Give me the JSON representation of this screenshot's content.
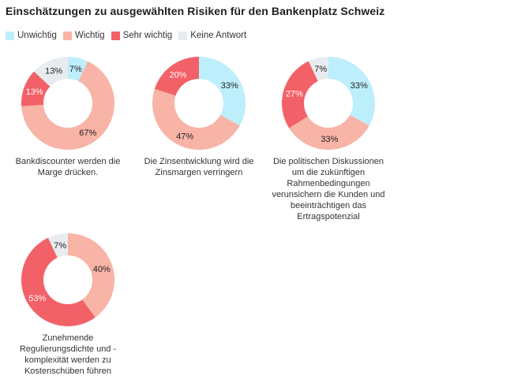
{
  "title": "Einschätzungen zu ausgewählten Risiken für den Bankenplatz Schweiz",
  "colors": {
    "Unwichtig": "#bdeefb",
    "Wichtig": "#f8b4a6",
    "Sehr wichtig": "#f36168",
    "Keine Antwort": "#e8ecef"
  },
  "chart_data": {
    "type": "pie",
    "title": "Einschätzungen zu ausgewählten Risiken für den Bankenplatz Schweiz",
    "legend": {
      "position": "top-left",
      "entries": [
        "Unwichtig",
        "Wichtig",
        "Sehr wichtig",
        "Keine Antwort"
      ]
    },
    "charts": [
      {
        "caption": "Bankdiscounter werden die Marge drücken.",
        "slices": [
          {
            "category": "Unwichtig",
            "value": 7,
            "label": "7%"
          },
          {
            "category": "Wichtig",
            "value": 67,
            "label": "67%"
          },
          {
            "category": "Sehr wichtig",
            "value": 13,
            "label": "13%"
          },
          {
            "category": "Keine Antwort",
            "value": 13,
            "label": "13%"
          }
        ]
      },
      {
        "caption": "Die Zinsentwicklung wird die Zinsmargen verringern",
        "slices": [
          {
            "category": "Unwichtig",
            "value": 33,
            "label": "33%"
          },
          {
            "category": "Wichtig",
            "value": 47,
            "label": "47%"
          },
          {
            "category": "Sehr wichtig",
            "value": 20,
            "label": "20%"
          }
        ]
      },
      {
        "caption": "Die politischen Diskussionen um die zukünftigen Rahmenbedingungen verunsichern die Kunden und beeinträchtigen das Ertragspotenzial",
        "slices": [
          {
            "category": "Unwichtig",
            "value": 33,
            "label": "33%"
          },
          {
            "category": "Wichtig",
            "value": 33,
            "label": "33%"
          },
          {
            "category": "Sehr wichtig",
            "value": 27,
            "label": "27%"
          },
          {
            "category": "Keine Antwort",
            "value": 7,
            "label": "7%"
          }
        ]
      },
      {
        "caption": "Zunehmende Regulierungsdichte und -komplexität werden zu Kostenschüben führen",
        "slices": [
          {
            "category": "Unwichtig",
            "value": 0,
            "label": ""
          },
          {
            "category": "Wichtig",
            "value": 40,
            "label": "40%"
          },
          {
            "category": "Sehr wichtig",
            "value": 53,
            "label": "53%"
          },
          {
            "category": "Keine Antwort",
            "value": 7,
            "label": "7%"
          }
        ]
      }
    ]
  }
}
